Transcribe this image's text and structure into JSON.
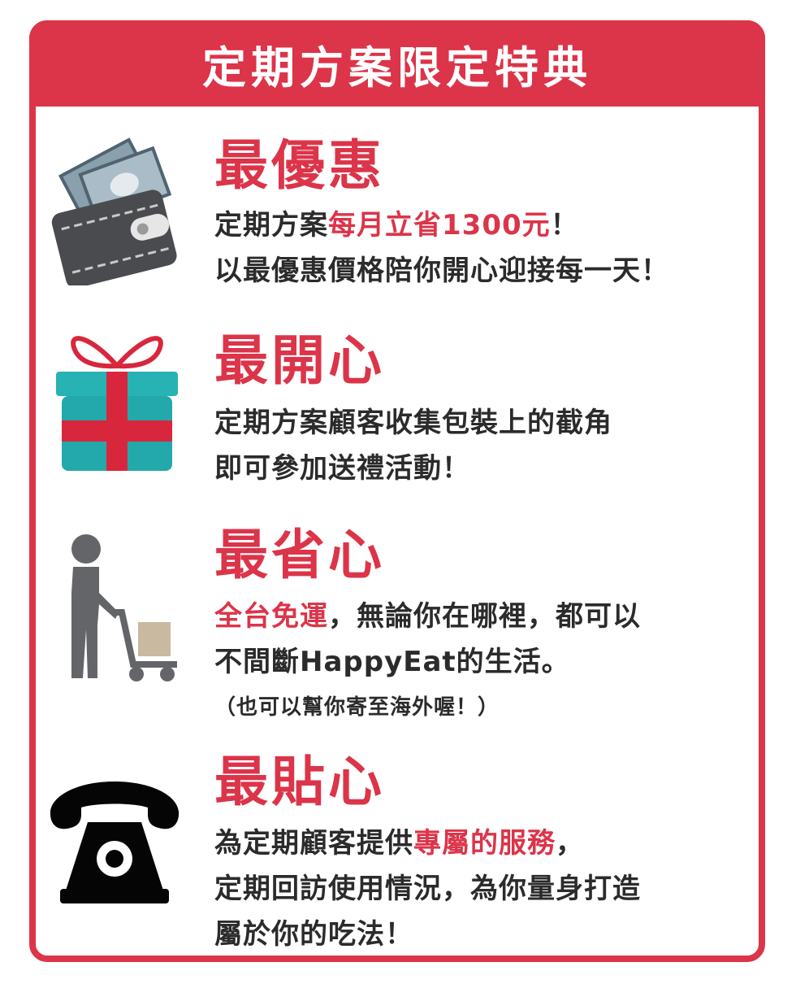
{
  "header": {
    "title": "定期方案限定特典"
  },
  "sections": [
    {
      "icon": "wallet-icon",
      "title": "最優惠",
      "line1_pre": "定期方案",
      "line1_highlight": "每月立省1300元",
      "line1_post": "！",
      "line2": "以最優惠價格陪你開心迎接每一天！"
    },
    {
      "icon": "gift-icon",
      "title": "最開心",
      "line1": "定期方案顧客收集包裝上的截角",
      "line2": "即可參加送禮活動！"
    },
    {
      "icon": "delivery-person-icon",
      "title": "最省心",
      "line1_highlight": "全台免運",
      "line1_post": "，無論你在哪裡，都可以",
      "line2": "不間斷HappyEat的生活。",
      "note": "（也可以幫你寄至海外喔！）"
    },
    {
      "icon": "telephone-icon",
      "title": "最貼心",
      "line1_pre": "為定期顧客提供",
      "line1_highlight": "專屬的服務",
      "line1_post": "，",
      "line2": "定期回訪使用情況，為你量身打造",
      "line3": "屬於你的吃法！"
    }
  ],
  "colors": {
    "accent": "#dc3449",
    "text": "#2b2b2b",
    "icon_gray": "#5f6064"
  }
}
